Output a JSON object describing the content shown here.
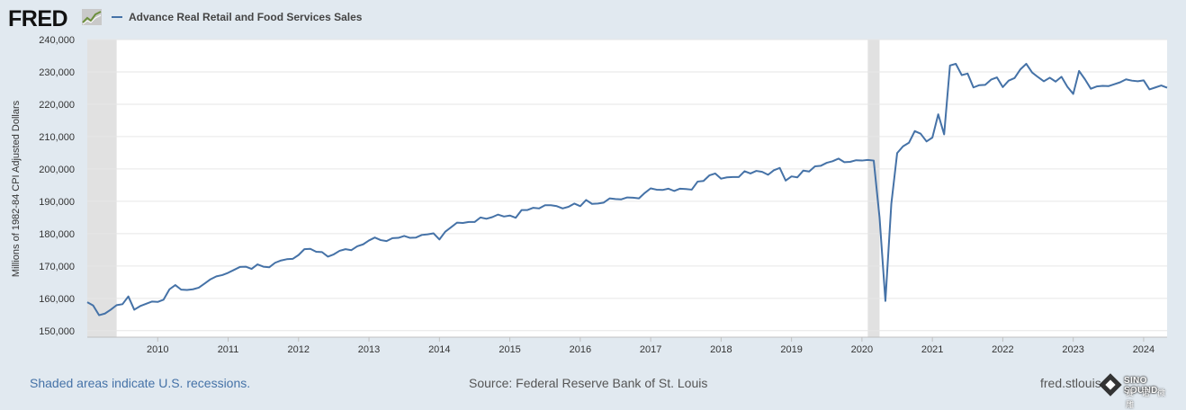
{
  "header": {
    "logo_text": "FRED",
    "legend_label": "Advance Real Retail and Food Services Sales"
  },
  "footer": {
    "recession_note": "Shaded areas indicate U.S. recessions.",
    "source": "Source: Federal Reserve Bank of St. Louis",
    "site": "fred.stlouis",
    "badge_title": "SINO SOUND",
    "badge_sub": "赛 诺 微 雕"
  },
  "colors": {
    "series": "#4572a7",
    "background": "#e1e9f0",
    "plot": "#ffffff",
    "recession": "#e1e1e1"
  },
  "chart_data": {
    "type": "line",
    "title": "Advance Real Retail and Food Services Sales",
    "xlabel": "",
    "ylabel": "Millions of 1982-84 CPI Adjusted Dollars",
    "ylim": [
      148000,
      240000
    ],
    "xlim": [
      2009.0,
      2024.333
    ],
    "yticks": [
      150000,
      160000,
      170000,
      180000,
      190000,
      200000,
      210000,
      220000,
      230000,
      240000
    ],
    "ytick_labels": [
      "150,000",
      "160,000",
      "170,000",
      "180,000",
      "190,000",
      "200,000",
      "210,000",
      "220,000",
      "230,000",
      "240,000"
    ],
    "xticks": [
      2010,
      2011,
      2012,
      2013,
      2014,
      2015,
      2016,
      2017,
      2018,
      2019,
      2020,
      2021,
      2022,
      2023,
      2024
    ],
    "xtick_labels": [
      "2010",
      "2011",
      "2012",
      "2013",
      "2014",
      "2015",
      "2016",
      "2017",
      "2018",
      "2019",
      "2020",
      "2021",
      "2022",
      "2023",
      "2024"
    ],
    "recessions": [
      [
        2009.0,
        2009.417
      ],
      [
        2020.083,
        2020.25
      ]
    ],
    "grid": true,
    "series": [
      {
        "name": "Advance Real Retail and Food Services Sales",
        "x": [
          2009.0,
          2009.083,
          2009.167,
          2009.25,
          2009.333,
          2009.417,
          2009.5,
          2009.583,
          2009.667,
          2009.75,
          2009.833,
          2009.917,
          2010.0,
          2010.083,
          2010.167,
          2010.25,
          2010.333,
          2010.417,
          2010.5,
          2010.583,
          2010.667,
          2010.75,
          2010.833,
          2010.917,
          2011.0,
          2011.083,
          2011.167,
          2011.25,
          2011.333,
          2011.417,
          2011.5,
          2011.583,
          2011.667,
          2011.75,
          2011.833,
          2011.917,
          2012.0,
          2012.083,
          2012.167,
          2012.25,
          2012.333,
          2012.417,
          2012.5,
          2012.583,
          2012.667,
          2012.75,
          2012.833,
          2012.917,
          2013.0,
          2013.083,
          2013.167,
          2013.25,
          2013.333,
          2013.417,
          2013.5,
          2013.583,
          2013.667,
          2013.75,
          2013.833,
          2013.917,
          2014.0,
          2014.083,
          2014.167,
          2014.25,
          2014.333,
          2014.417,
          2014.5,
          2014.583,
          2014.667,
          2014.75,
          2014.833,
          2014.917,
          2015.0,
          2015.083,
          2015.167,
          2015.25,
          2015.333,
          2015.417,
          2015.5,
          2015.583,
          2015.667,
          2015.75,
          2015.833,
          2015.917,
          2016.0,
          2016.083,
          2016.167,
          2016.25,
          2016.333,
          2016.417,
          2016.5,
          2016.583,
          2016.667,
          2016.75,
          2016.833,
          2016.917,
          2017.0,
          2017.083,
          2017.167,
          2017.25,
          2017.333,
          2017.417,
          2017.5,
          2017.583,
          2017.667,
          2017.75,
          2017.833,
          2017.917,
          2018.0,
          2018.083,
          2018.167,
          2018.25,
          2018.333,
          2018.417,
          2018.5,
          2018.583,
          2018.667,
          2018.75,
          2018.833,
          2018.917,
          2019.0,
          2019.083,
          2019.167,
          2019.25,
          2019.333,
          2019.417,
          2019.5,
          2019.583,
          2019.667,
          2019.75,
          2019.833,
          2019.917,
          2020.0,
          2020.083,
          2020.167,
          2020.25,
          2020.333,
          2020.417,
          2020.5,
          2020.583,
          2020.667,
          2020.75,
          2020.833,
          2020.917,
          2021.0,
          2021.083,
          2021.167,
          2021.25,
          2021.333,
          2021.417,
          2021.5,
          2021.583,
          2021.667,
          2021.75,
          2021.833,
          2021.917,
          2022.0,
          2022.083,
          2022.167,
          2022.25,
          2022.333,
          2022.417,
          2022.5,
          2022.583,
          2022.667,
          2022.75,
          2022.833,
          2022.917,
          2023.0,
          2023.083,
          2023.167,
          2023.25,
          2023.333,
          2023.417,
          2023.5,
          2023.583,
          2023.667,
          2023.75,
          2023.833,
          2023.917,
          2024.0,
          2024.083,
          2024.167,
          2024.25,
          2024.333
        ],
        "values": [
          158800,
          157800,
          154800,
          155300,
          156500,
          157900,
          158200,
          160600,
          156500,
          157600,
          158300,
          159000,
          158900,
          159600,
          162800,
          164100,
          162700,
          162600,
          162800,
          163300,
          164600,
          165900,
          166800,
          167200,
          167900,
          168800,
          169700,
          169800,
          169100,
          170500,
          169800,
          169600,
          171000,
          171700,
          172100,
          172200,
          173400,
          175200,
          175300,
          174400,
          174300,
          172900,
          173600,
          174700,
          175200,
          174900,
          176100,
          176700,
          177900,
          178800,
          178000,
          177700,
          178600,
          178700,
          179300,
          178700,
          178800,
          179600,
          179800,
          180100,
          178200,
          180600,
          182000,
          183400,
          183300,
          183600,
          183600,
          185000,
          184600,
          185100,
          185900,
          185300,
          185600,
          184900,
          187300,
          187300,
          188000,
          187800,
          188800,
          188800,
          188500,
          187800,
          188300,
          189300,
          188500,
          190400,
          189200,
          189300,
          189600,
          190900,
          190700,
          190600,
          191200,
          191100,
          190900,
          192600,
          194000,
          193600,
          193500,
          193900,
          193200,
          193900,
          193800,
          193600,
          196100,
          196300,
          198000,
          198600,
          197000,
          197400,
          197500,
          197500,
          199300,
          198600,
          199400,
          199100,
          198200,
          199600,
          200300,
          196400,
          197700,
          197400,
          199500,
          199200,
          200800,
          201000,
          201900,
          202400,
          203200,
          202100,
          202200,
          202700,
          202600,
          202800,
          202600,
          185000,
          159200,
          189200,
          204900,
          207000,
          208100,
          211700,
          210900,
          208500,
          209700,
          216900,
          210700,
          232000,
          232500,
          229000,
          229500,
          225200,
          225900,
          226000,
          227600,
          228300,
          225300,
          227300,
          228100,
          230800,
          232500,
          229800,
          228400,
          227100,
          228200,
          227000,
          228500,
          225400,
          223200,
          230300,
          227700,
          224800,
          225500,
          225700,
          225600,
          226200,
          226800,
          227700,
          227300,
          227100,
          227400,
          224600,
          225200,
          225800,
          225100
        ]
      }
    ]
  }
}
